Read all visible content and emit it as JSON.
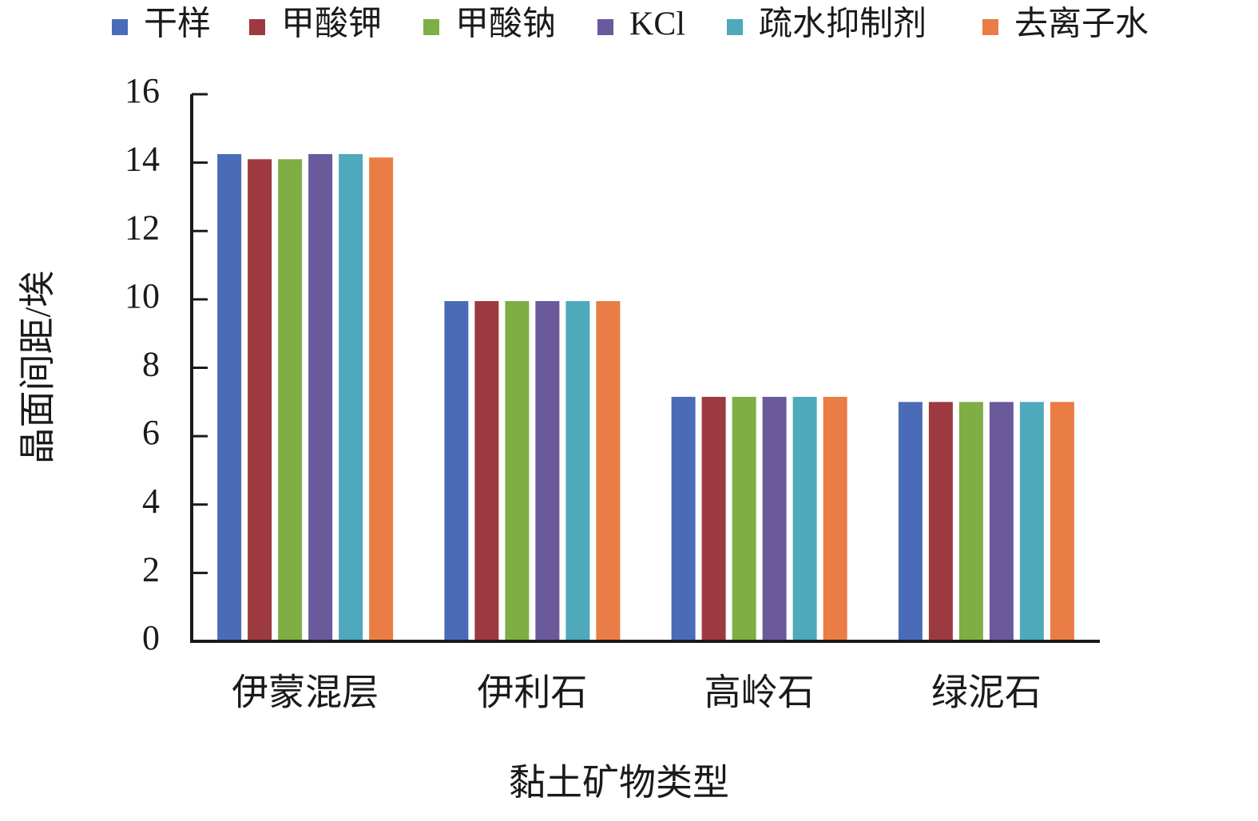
{
  "chart_data": {
    "type": "bar",
    "x_label": "黏土矿物类型",
    "y_label": "晶面间距/埃",
    "categories": [
      "伊蒙混层",
      "伊利石",
      "高岭石",
      "绿泥石"
    ],
    "series": [
      {
        "name": "干样",
        "color": "#4a6cb8",
        "values": [
          14.25,
          9.95,
          7.15,
          7.0
        ]
      },
      {
        "name": "甲酸钾",
        "color": "#9c3a3f",
        "values": [
          14.1,
          9.95,
          7.15,
          7.0
        ]
      },
      {
        "name": "甲酸钠",
        "color": "#7fae45",
        "values": [
          14.1,
          9.95,
          7.15,
          7.0
        ]
      },
      {
        "name": "KCl",
        "color": "#6a5a9c",
        "values": [
          14.25,
          9.95,
          7.15,
          7.0
        ]
      },
      {
        "name": "疏水抑制剂",
        "color": "#4ea9bc",
        "values": [
          14.25,
          9.95,
          7.15,
          7.0
        ]
      },
      {
        "name": "去离子水",
        "color": "#ea7c45",
        "values": [
          14.15,
          9.95,
          7.15,
          7.0
        ]
      }
    ],
    "ylim": [
      0,
      16
    ],
    "yticks": [
      0,
      2,
      4,
      6,
      8,
      10,
      12,
      14,
      16
    ],
    "legend": "top"
  }
}
